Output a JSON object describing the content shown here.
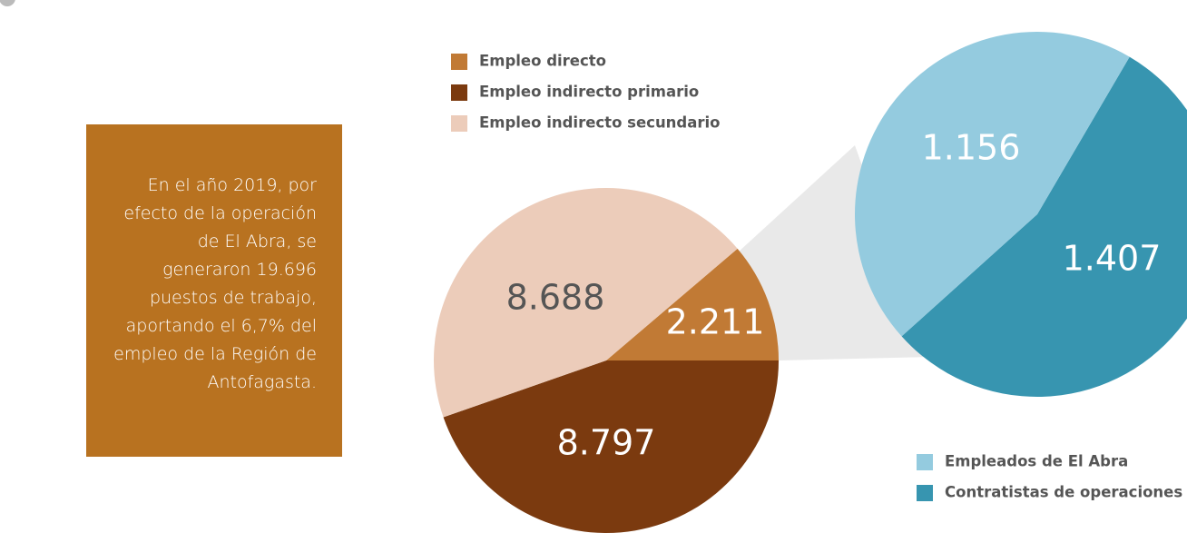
{
  "chart_data": [
    {
      "type": "pie",
      "categories": [
        "Empleo directo",
        "Empleo indirecto primario",
        "Empleo indirecto secundario"
      ],
      "values": [
        2211,
        8797,
        8688
      ],
      "value_labels": [
        "2.211",
        "8.797",
        "8.688"
      ],
      "colors": [
        "#c17a35",
        "#7b3a0f",
        "#ecccba"
      ],
      "annotation": "En el año 2019, por efecto de la operación de El Abra, se generaron 19.696 puestos de trabajo, aportando el 6,7% del empleo de la Región de Antofagasta."
    },
    {
      "type": "pie",
      "categories": [
        "Empleados de El Abra",
        "Contratistas de operaciones"
      ],
      "values": [
        1156,
        1407
      ],
      "value_labels": [
        "1.156",
        "1.407"
      ],
      "colors": [
        "#94cbdf",
        "#3795b0"
      ]
    }
  ]
}
